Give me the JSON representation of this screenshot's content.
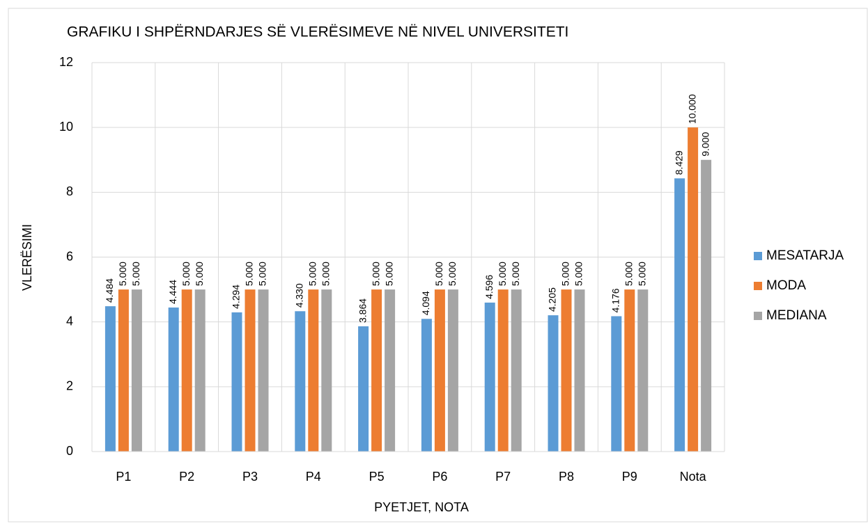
{
  "chart_data": {
    "type": "bar",
    "title": "GRAFIKU I SHPËRNDARJES SË VLERËSIMEVE NË NIVEL UNIVERSITETI",
    "x_label": "PYETJET, NOTA",
    "y_label": "VLERËSIMI",
    "categories": [
      "P1",
      "P2",
      "P3",
      "P4",
      "P5",
      "P6",
      "P7",
      "P8",
      "P9",
      "Nota"
    ],
    "series": [
      {
        "name": "MESATARJA",
        "color": "#5b9bd5",
        "values": [
          4.484,
          4.444,
          4.294,
          4.33,
          3.864,
          4.094,
          4.596,
          4.205,
          4.176,
          8.429
        ],
        "value_labels": [
          "4.484",
          "4.444",
          "4.294",
          "4.330",
          "3.864",
          "4.094",
          "4.596",
          "4.205",
          "4.176",
          "8.429"
        ]
      },
      {
        "name": "MODA",
        "color": "#ed7d31",
        "values": [
          5,
          5,
          5,
          5,
          5,
          5,
          5,
          5,
          5,
          10
        ],
        "value_labels": [
          "5.000",
          "5.000",
          "5.000",
          "5.000",
          "5.000",
          "5.000",
          "5.000",
          "5.000",
          "5.000",
          "10.000"
        ]
      },
      {
        "name": "MEDIANA",
        "color": "#a5a5a5",
        "values": [
          5,
          5,
          5,
          5,
          5,
          5,
          5,
          5,
          5,
          9
        ],
        "value_labels": [
          "5.000",
          "5.000",
          "5.000",
          "5.000",
          "5.000",
          "5.000",
          "5.000",
          "5.000",
          "5.000",
          "9.000"
        ]
      }
    ],
    "ylim": [
      0,
      12
    ],
    "yticks": [
      0,
      2,
      4,
      6,
      8,
      10,
      12
    ],
    "grid": true,
    "legend": "right"
  }
}
